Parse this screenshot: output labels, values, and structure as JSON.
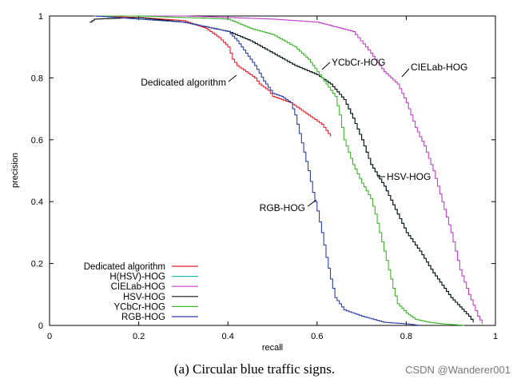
{
  "chart_data": {
    "type": "line",
    "title": "",
    "xlabel": "recall",
    "ylabel": "precision",
    "xlim": [
      0,
      1
    ],
    "ylim": [
      0,
      1
    ],
    "xticks": [
      "0",
      "0.2",
      "0.4",
      "0.6",
      "0.8",
      "1"
    ],
    "yticks": [
      "0",
      "0.2",
      "0.4",
      "0.6",
      "0.8",
      "1"
    ],
    "legend_position": "bottom-left",
    "series": [
      {
        "name": "Dedicated algorithm",
        "color": "#e8202a",
        "x": [
          0.1,
          0.2,
          0.3,
          0.35,
          0.38,
          0.4,
          0.41,
          0.42,
          0.43,
          0.45,
          0.46,
          0.47,
          0.49,
          0.5,
          0.52,
          0.54,
          0.55,
          0.56,
          0.57,
          0.58,
          0.59,
          0.6,
          0.61,
          0.62,
          0.63
        ],
        "y": [
          1.0,
          0.995,
          0.985,
          0.96,
          0.93,
          0.9,
          0.86,
          0.84,
          0.83,
          0.81,
          0.8,
          0.78,
          0.76,
          0.74,
          0.73,
          0.72,
          0.71,
          0.7,
          0.69,
          0.68,
          0.67,
          0.66,
          0.65,
          0.63,
          0.61
        ]
      },
      {
        "name": "H(HSV)-HOG",
        "color": "#25b8c0",
        "x": [
          0.1,
          0.2,
          0.3,
          0.4,
          0.45,
          0.5,
          0.55,
          0.6,
          0.63,
          0.66,
          0.68,
          0.7,
          0.72,
          0.75,
          0.78,
          0.8,
          0.83,
          0.86,
          0.88,
          0.9,
          0.92,
          0.94,
          0.95
        ],
        "y": [
          1.0,
          0.99,
          0.98,
          0.95,
          0.92,
          0.88,
          0.84,
          0.81,
          0.78,
          0.73,
          0.67,
          0.6,
          0.52,
          0.45,
          0.36,
          0.3,
          0.24,
          0.17,
          0.13,
          0.09,
          0.06,
          0.03,
          0.01
        ]
      },
      {
        "name": "CIELab-HOG",
        "color": "#c040c8",
        "x": [
          0.1,
          0.2,
          0.3,
          0.4,
          0.5,
          0.6,
          0.68,
          0.72,
          0.75,
          0.78,
          0.8,
          0.82,
          0.84,
          0.86,
          0.88,
          0.9,
          0.92,
          0.94,
          0.96,
          0.97
        ],
        "y": [
          1.0,
          1.0,
          1.0,
          0.995,
          0.99,
          0.98,
          0.95,
          0.88,
          0.82,
          0.78,
          0.72,
          0.64,
          0.58,
          0.5,
          0.4,
          0.3,
          0.18,
          0.1,
          0.03,
          0.005
        ]
      },
      {
        "name": "HSV-HOG",
        "color": "#101010",
        "x": [
          0.09,
          0.1,
          0.2,
          0.3,
          0.4,
          0.45,
          0.5,
          0.55,
          0.6,
          0.63,
          0.66,
          0.68,
          0.7,
          0.72,
          0.75,
          0.78,
          0.8,
          0.83,
          0.86,
          0.88,
          0.9,
          0.92,
          0.94,
          0.95
        ],
        "y": [
          0.98,
          0.99,
          0.995,
          0.98,
          0.95,
          0.92,
          0.88,
          0.84,
          0.81,
          0.78,
          0.73,
          0.67,
          0.6,
          0.52,
          0.45,
          0.36,
          0.3,
          0.24,
          0.17,
          0.13,
          0.09,
          0.06,
          0.03,
          0.01
        ]
      },
      {
        "name": "YCbCr-HOG",
        "color": "#3fb52a",
        "x": [
          0.1,
          0.2,
          0.3,
          0.4,
          0.45,
          0.5,
          0.55,
          0.58,
          0.6,
          0.62,
          0.64,
          0.65,
          0.66,
          0.68,
          0.7,
          0.72,
          0.73,
          0.74,
          0.75,
          0.76,
          0.77,
          0.78,
          0.8,
          0.82,
          0.85,
          0.88,
          0.9,
          0.93
        ],
        "y": [
          1.0,
          1.0,
          0.995,
          0.99,
          0.96,
          0.94,
          0.9,
          0.86,
          0.82,
          0.78,
          0.74,
          0.68,
          0.6,
          0.52,
          0.46,
          0.41,
          0.36,
          0.3,
          0.24,
          0.18,
          0.12,
          0.07,
          0.04,
          0.02,
          0.01,
          0.005,
          0.003,
          0.0
        ]
      },
      {
        "name": "RGB-HOG",
        "color": "#2d3fa8",
        "x": [
          0.1,
          0.2,
          0.3,
          0.4,
          0.42,
          0.44,
          0.46,
          0.48,
          0.5,
          0.52,
          0.54,
          0.55,
          0.56,
          0.57,
          0.58,
          0.59,
          0.6,
          0.61,
          0.62,
          0.63,
          0.64,
          0.66,
          0.7,
          0.75,
          0.8,
          0.83
        ],
        "y": [
          1.0,
          0.99,
          0.98,
          0.95,
          0.92,
          0.88,
          0.84,
          0.79,
          0.75,
          0.74,
          0.72,
          0.68,
          0.62,
          0.56,
          0.5,
          0.43,
          0.37,
          0.3,
          0.22,
          0.15,
          0.09,
          0.05,
          0.03,
          0.01,
          0.005,
          0.0
        ]
      }
    ],
    "annotations": [
      {
        "text": "Dedicated algorithm",
        "series": "Dedicated algorithm"
      },
      {
        "text": "YCbCr-HOG",
        "series": "YCbCr-HOG"
      },
      {
        "text": "CIELab-HOG",
        "series": "CIELab-HOG"
      },
      {
        "text": "HSV-HOG",
        "series": "HSV-HOG"
      },
      {
        "text": "RGB-HOG",
        "series": "RGB-HOG"
      }
    ]
  },
  "caption": "(a)  Circular blue traffic signs.",
  "watermark": "CSDN @Wanderer001"
}
